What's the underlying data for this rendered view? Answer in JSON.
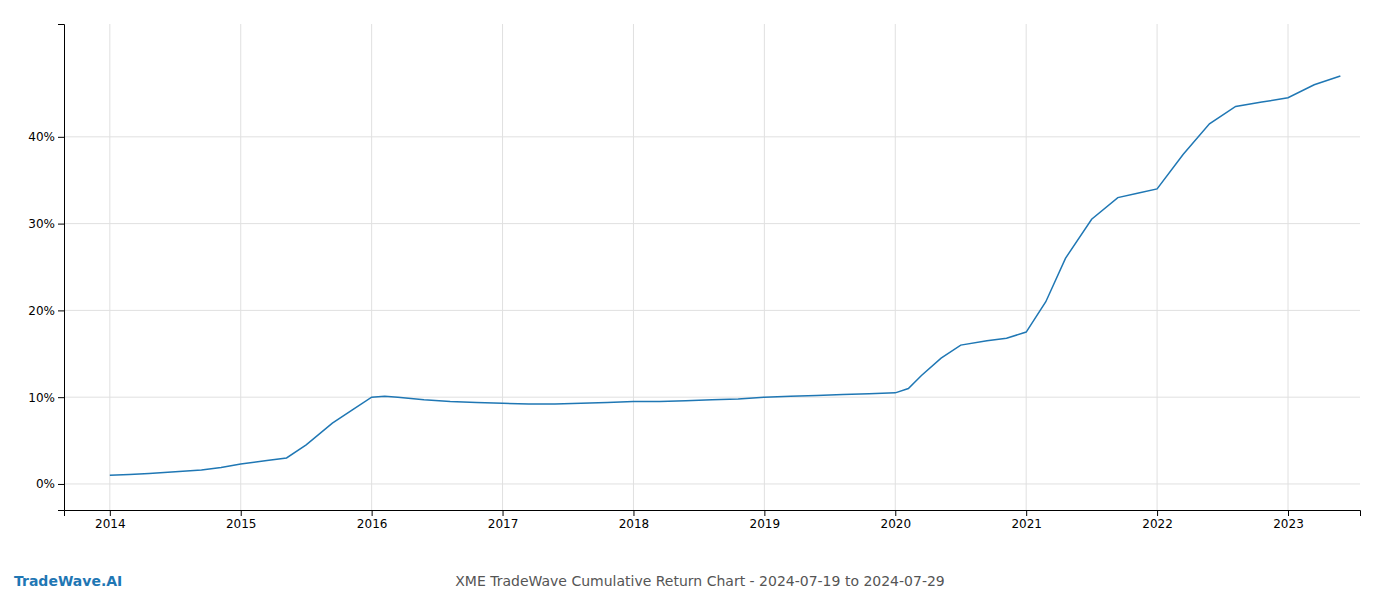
{
  "chart_data": {
    "type": "line",
    "title": "XME TradeWave Cumulative Return Chart - 2024-07-19 to 2024-07-29",
    "annotations": [
      "TradeWave.AI"
    ],
    "x": [
      2014.0,
      2014.15,
      2014.3,
      2014.5,
      2014.7,
      2014.85,
      2015.0,
      2015.2,
      2015.35,
      2015.5,
      2015.7,
      2015.85,
      2016.0,
      2016.1,
      2016.2,
      2016.4,
      2016.6,
      2016.8,
      2017.0,
      2017.2,
      2017.4,
      2017.6,
      2017.8,
      2018.0,
      2018.2,
      2018.4,
      2018.6,
      2018.8,
      2019.0,
      2019.2,
      2019.4,
      2019.6,
      2019.8,
      2020.0,
      2020.1,
      2020.2,
      2020.35,
      2020.5,
      2020.7,
      2020.85,
      2021.0,
      2021.15,
      2021.3,
      2021.5,
      2021.7,
      2021.85,
      2022.0,
      2022.2,
      2022.4,
      2022.6,
      2022.8,
      2023.0,
      2023.2,
      2023.4
    ],
    "values": [
      1.0,
      1.1,
      1.2,
      1.4,
      1.6,
      1.9,
      2.3,
      2.7,
      3.0,
      4.5,
      7.0,
      8.5,
      10.0,
      10.1,
      10.0,
      9.7,
      9.5,
      9.4,
      9.3,
      9.2,
      9.2,
      9.3,
      9.4,
      9.5,
      9.5,
      9.6,
      9.7,
      9.8,
      10.0,
      10.1,
      10.2,
      10.3,
      10.4,
      10.5,
      11.0,
      12.5,
      14.5,
      16.0,
      16.5,
      16.8,
      17.5,
      21.0,
      26.0,
      30.5,
      33.0,
      33.5,
      34.0,
      38.0,
      41.5,
      43.5,
      44.0,
      44.5,
      46.0,
      47.0
    ],
    "color": "#1f77b4",
    "xlim": [
      2013.65,
      2023.55
    ],
    "ylim": [
      -3,
      53
    ],
    "xticks": [
      2014,
      2015,
      2016,
      2017,
      2018,
      2019,
      2020,
      2021,
      2022,
      2023
    ],
    "yticks": [
      {
        "value": 0,
        "label": "0%"
      },
      {
        "value": 10,
        "label": "10%"
      },
      {
        "value": 20,
        "label": "20%"
      },
      {
        "value": 30,
        "label": "30%"
      },
      {
        "value": 40,
        "label": "40%"
      }
    ],
    "grid": true
  }
}
